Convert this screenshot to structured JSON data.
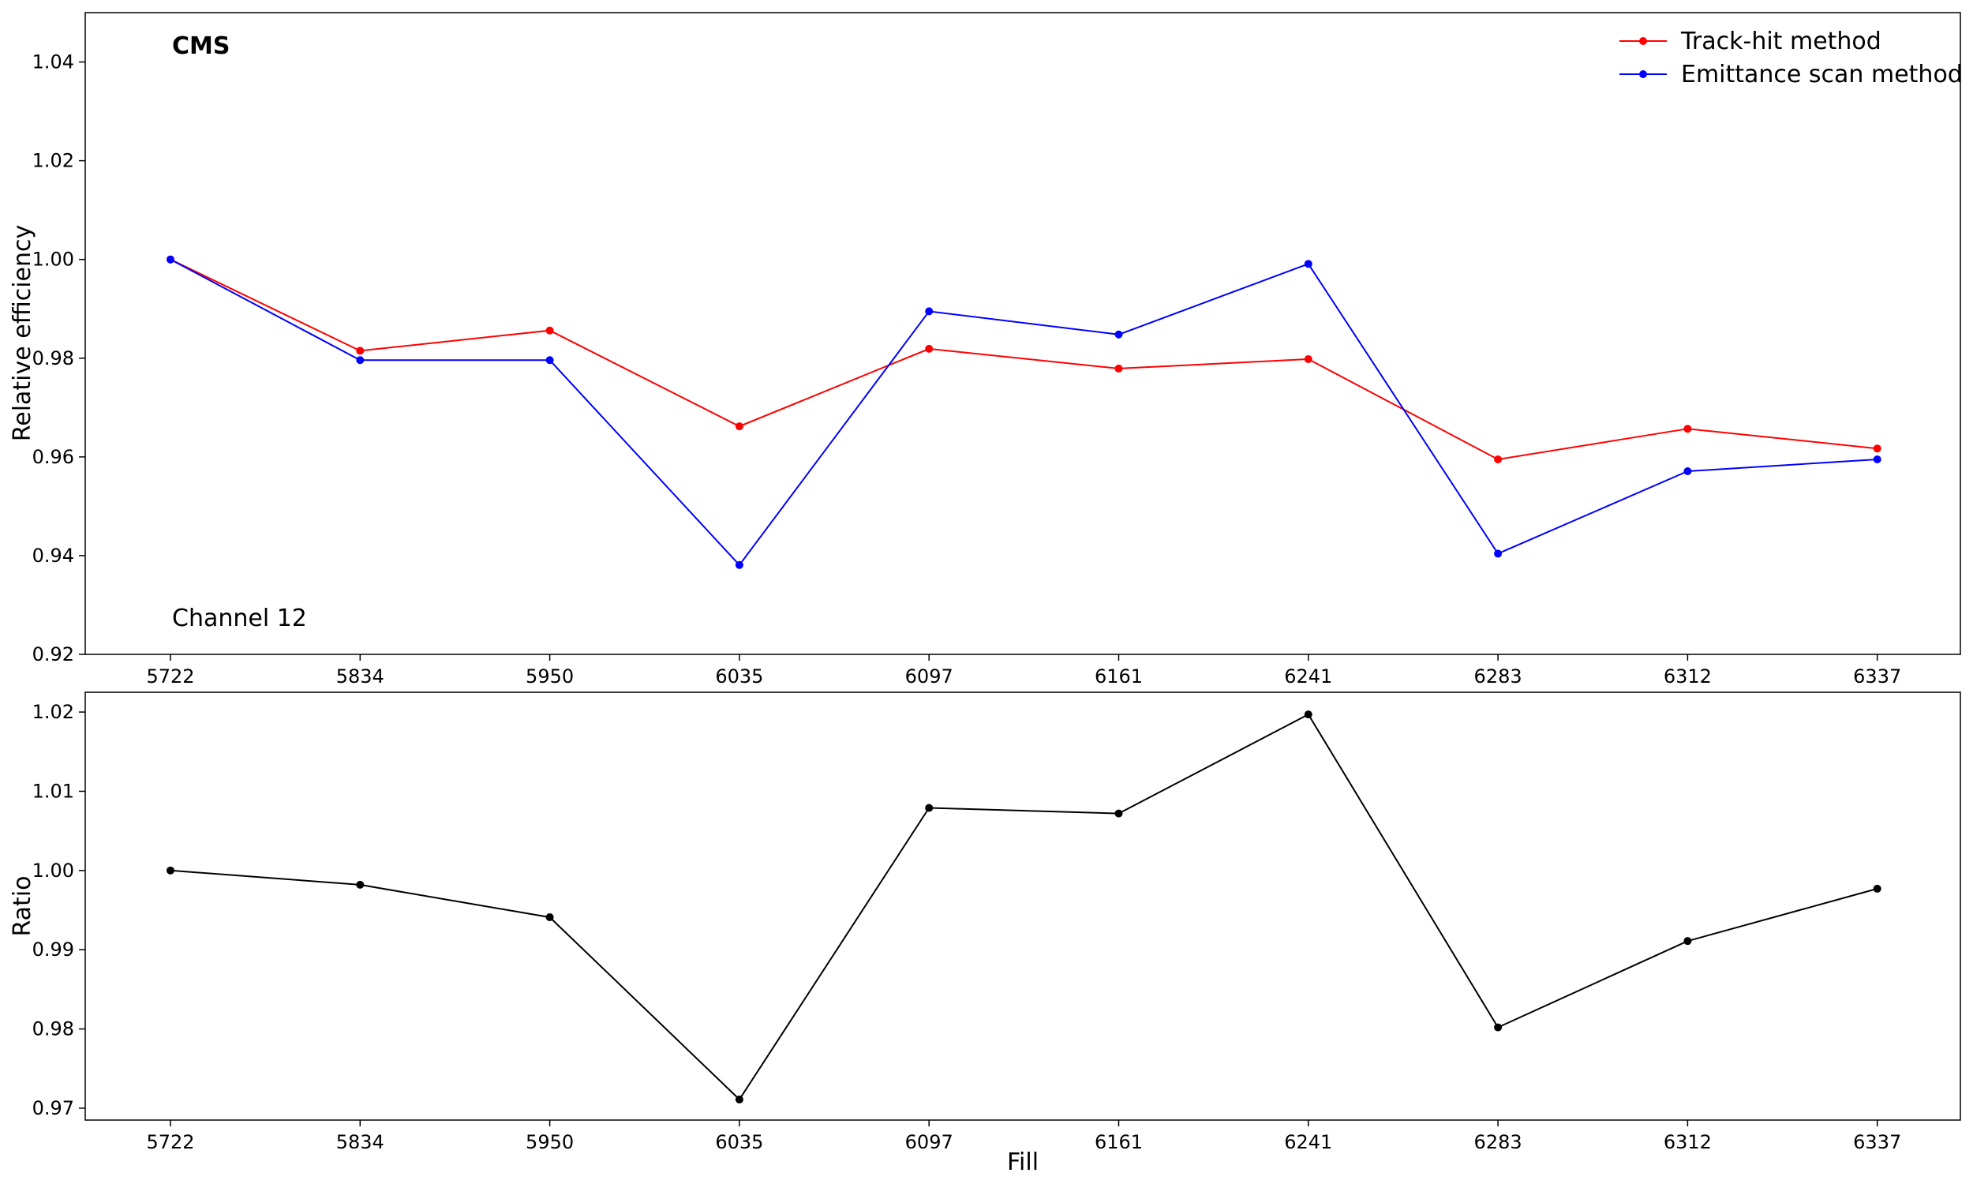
{
  "chart_data": [
    {
      "type": "line",
      "categories": [
        "5722",
        "5834",
        "5950",
        "6035",
        "6097",
        "6161",
        "6241",
        "6283",
        "6312",
        "6337"
      ],
      "series": [
        {
          "name": "Track-hit method",
          "color": "#ff0000",
          "values": [
            1.0,
            0.9815,
            0.9856,
            0.9662,
            0.9819,
            0.9779,
            0.9798,
            0.9595,
            0.9657,
            0.9617
          ]
        },
        {
          "name": "Emittance scan method",
          "color": "#0000ff",
          "values": [
            1.0,
            0.9796,
            0.9796,
            0.9381,
            0.9895,
            0.9848,
            0.9991,
            0.9404,
            0.9571,
            0.9595
          ]
        }
      ],
      "ylabel": "Relative efficiency",
      "xlabel": "",
      "ylim": [
        0.92,
        1.05
      ],
      "yticks": [
        "0.92",
        "0.94",
        "0.96",
        "0.98",
        "1.00",
        "1.02",
        "1.04"
      ],
      "legend_position": "top-right",
      "grid": false,
      "annotations": [
        "CMS",
        "Channel 12"
      ]
    },
    {
      "type": "line",
      "categories": [
        "5722",
        "5834",
        "5950",
        "6035",
        "6097",
        "6161",
        "6241",
        "6283",
        "6312",
        "6337"
      ],
      "series": [
        {
          "color": "#000000",
          "values": [
            1.0,
            0.9982,
            0.9941,
            0.9711,
            1.0079,
            1.0072,
            1.0197,
            0.9802,
            0.9911,
            0.9977
          ]
        }
      ],
      "ylabel": "Ratio",
      "xlabel": "Fill",
      "ylim": [
        0.9685,
        1.0225
      ],
      "yticks": [
        "0.97",
        "0.98",
        "0.99",
        "1.00",
        "1.01",
        "1.02"
      ],
      "grid": false
    }
  ],
  "labels": {
    "experiment": "CMS",
    "channel": "Channel 12"
  }
}
